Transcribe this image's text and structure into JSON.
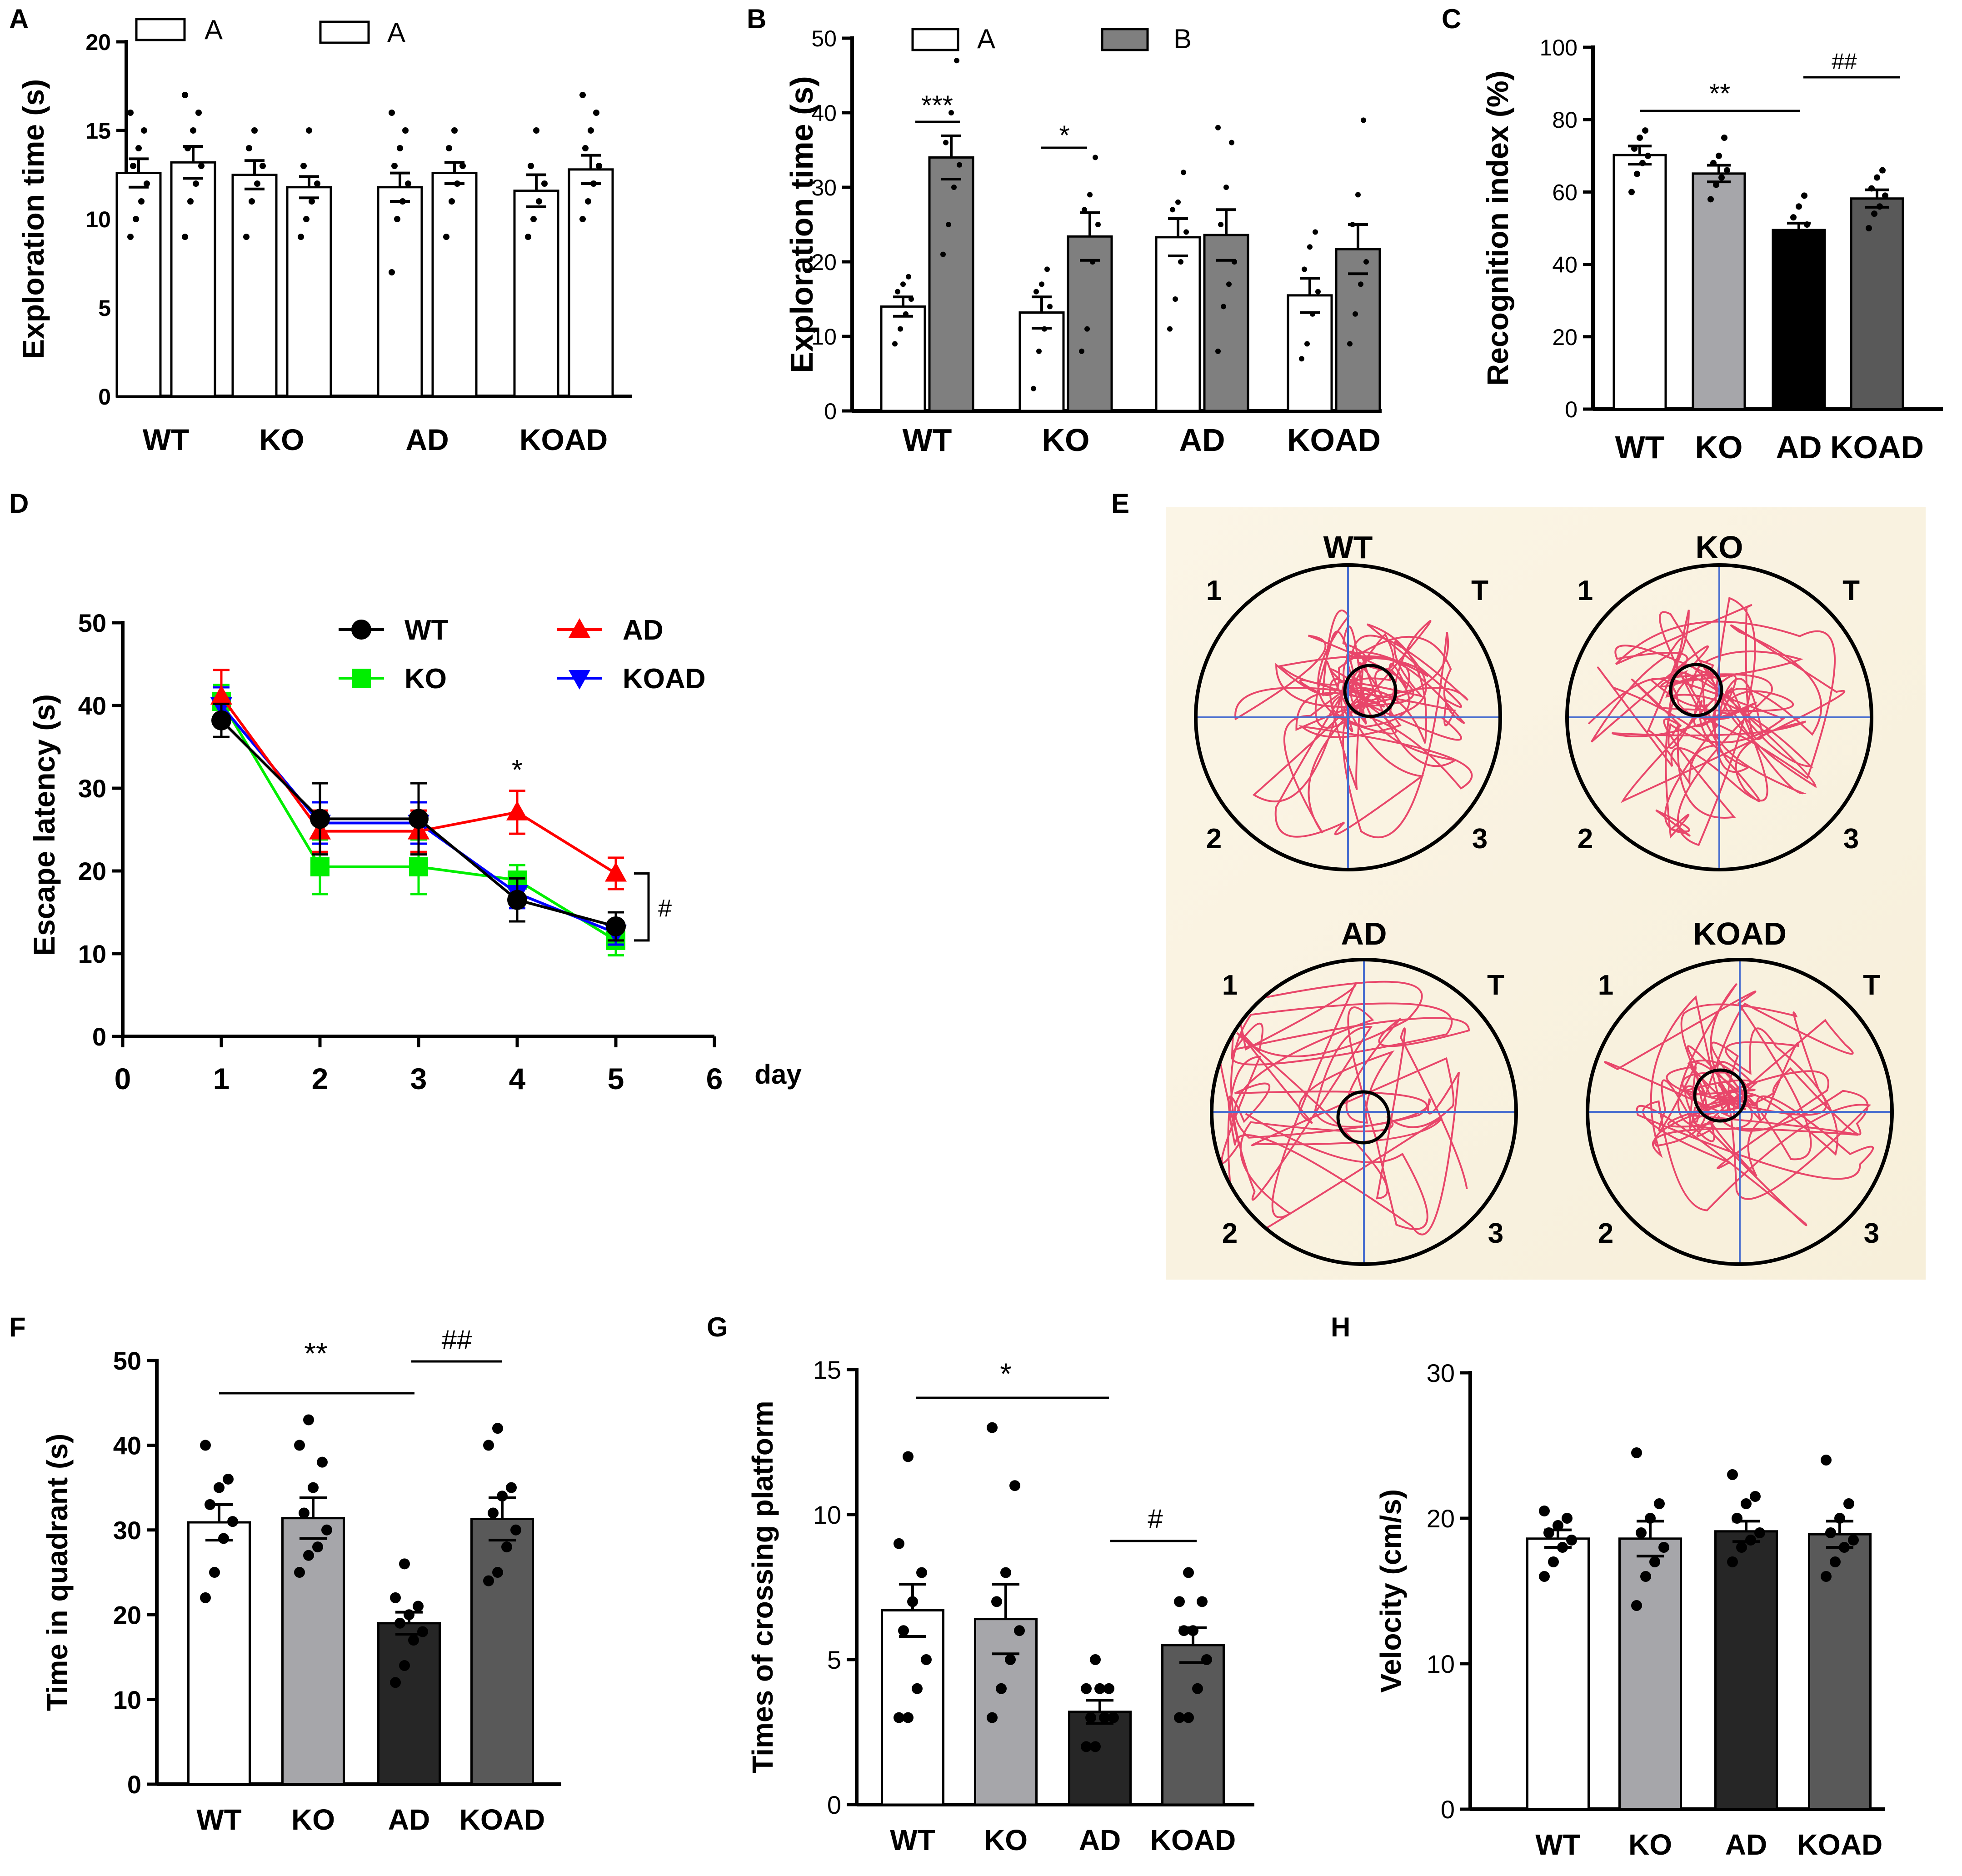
{
  "chart_data": [
    {
      "panel": "A",
      "type": "bar",
      "categories": [
        "WT",
        "KO",
        "AD",
        "KOAD"
      ],
      "series": [
        {
          "name": "A",
          "values": [
            12.6,
            12.5,
            11.8,
            11.6
          ],
          "errors": [
            0.8,
            0.8,
            0.8,
            0.9
          ],
          "points": [
            [
              9,
              10,
              11,
              12,
              13,
              14,
              15,
              16
            ],
            [
              9,
              11,
              12,
              13,
              14,
              15
            ],
            [
              7,
              10,
              11,
              12,
              13,
              14,
              15,
              16
            ],
            [
              9,
              10,
              11,
              12,
              13,
              15
            ]
          ]
        },
        {
          "name": "A",
          "values": [
            13.2,
            11.8,
            12.6,
            12.8
          ],
          "errors": [
            0.9,
            0.6,
            0.6,
            0.8
          ],
          "points": [
            [
              9,
              11,
              12,
              13,
              14,
              15,
              16,
              17
            ],
            [
              9,
              10,
              11,
              12,
              13,
              15
            ],
            [
              9,
              11,
              12,
              13,
              14,
              15
            ],
            [
              10,
              11,
              12,
              13,
              14,
              15,
              16,
              17
            ]
          ]
        }
      ],
      "ylabel": "Exploration time (s)",
      "ylim": [
        0,
        20
      ],
      "yticks": [
        "0",
        "5",
        "10",
        "15",
        "20"
      ],
      "legend": "top"
    },
    {
      "panel": "B",
      "type": "bar",
      "categories": [
        "WT",
        "KO",
        "AD",
        "KOAD"
      ],
      "series": [
        {
          "name": "A",
          "values": [
            14,
            13.2,
            23.3,
            15.5
          ],
          "errors": [
            1.3,
            2.1,
            2.5,
            2.3
          ],
          "points": [
            [
              9,
              11,
              13,
              15,
              16,
              17,
              18
            ],
            [
              3,
              8,
              11,
              14,
              16,
              17,
              19
            ],
            [
              11,
              15,
              20,
              24,
              27,
              28,
              32
            ],
            [
              7,
              9,
              13,
              16,
              19,
              22,
              24
            ]
          ]
        },
        {
          "name": "B",
          "values": [
            34,
            23.4,
            23.6,
            21.7
          ],
          "errors": [
            2.9,
            3.2,
            3.4,
            3.3
          ],
          "points": [
            [
              21,
              25,
              30,
              33,
              36,
              40,
              47
            ],
            [
              8,
              11,
              20,
              25,
              27,
              29,
              34
            ],
            [
              8,
              14,
              17,
              20,
              25,
              30,
              36,
              38
            ],
            [
              9,
              13,
              17,
              20,
              25,
              29,
              39
            ]
          ]
        }
      ],
      "ylabel": "Exploration time (s)",
      "ylim": [
        0,
        50
      ],
      "yticks": [
        "0",
        "10",
        "20",
        "30",
        "40",
        "50"
      ],
      "significance": [
        "***",
        "*"
      ],
      "legend": "top"
    },
    {
      "panel": "C",
      "type": "bar",
      "categories": [
        "WT",
        "KO",
        "AD",
        "KOAD"
      ],
      "values": [
        70.2,
        65.1,
        49.5,
        58.2
      ],
      "errors": [
        2.5,
        2.3,
        1.9,
        2.4
      ],
      "points": [
        [
          60,
          65,
          68,
          70,
          72,
          75,
          77
        ],
        [
          58,
          62,
          64,
          66,
          68,
          70,
          75
        ],
        [
          44,
          47,
          49,
          51,
          53,
          56,
          59
        ],
        [
          50,
          54,
          56,
          59,
          61,
          64,
          66
        ]
      ],
      "ylabel": "Recognition index (%)",
      "ylim": [
        0,
        100
      ],
      "yticks": [
        "0",
        "20",
        "40",
        "60",
        "80",
        "100"
      ],
      "significance": [
        "**",
        "##"
      ]
    },
    {
      "panel": "D",
      "type": "line",
      "x": [
        1,
        2,
        3,
        4,
        5
      ],
      "series": [
        {
          "name": "WT",
          "values": [
            38.2,
            26.3,
            26.3,
            16.5,
            13.3
          ],
          "errors": [
            2.0,
            4.3,
            4.3,
            2.6,
            1.7
          ],
          "color": "#000000",
          "marker": "circle"
        },
        {
          "name": "AD",
          "values": [
            41.1,
            24.8,
            24.8,
            27.1,
            19.7
          ],
          "errors": [
            3.2,
            2.5,
            2.5,
            2.6,
            1.9
          ],
          "color": "#ff0000",
          "marker": "triangle-up"
        },
        {
          "name": "KO",
          "values": [
            40.5,
            20.5,
            20.5,
            18.9,
            11.6
          ],
          "errors": [
            2.0,
            3.3,
            3.3,
            1.8,
            1.8
          ],
          "color": "#00ee00",
          "marker": "square"
        },
        {
          "name": "KOAD",
          "values": [
            40.0,
            25.8,
            25.8,
            17.3,
            12.5
          ],
          "errors": [
            2.2,
            2.5,
            2.5,
            1.8,
            1.4
          ],
          "color": "#0000ff",
          "marker": "triangle-down"
        }
      ],
      "xlabel": "day",
      "ylabel": "Escape latency (s)",
      "xlim": [
        0,
        6
      ],
      "ylim": [
        0,
        50
      ],
      "xticks": [
        "0",
        "1",
        "2",
        "3",
        "4",
        "5",
        "6"
      ],
      "yticks": [
        "0",
        "10",
        "20",
        "30",
        "40",
        "50"
      ],
      "significance": [
        "*",
        "#"
      ]
    },
    {
      "panel": "E",
      "type": "image",
      "groups": [
        "WT",
        "KO",
        "AD",
        "KOAD"
      ],
      "quadrant_labels": [
        "1",
        "T",
        "2",
        "3"
      ]
    },
    {
      "panel": "F",
      "type": "bar",
      "categories": [
        "WT",
        "KO",
        "AD",
        "KOAD"
      ],
      "values": [
        30.9,
        31.4,
        19.0,
        31.3
      ],
      "errors": [
        2.1,
        2.4,
        1.3,
        2.5
      ],
      "points": [
        [
          22,
          25,
          29,
          31,
          33,
          35,
          36,
          40
        ],
        [
          25,
          27,
          28,
          30,
          32,
          35,
          38,
          40,
          43
        ],
        [
          12,
          14,
          17,
          18,
          19,
          20,
          21,
          22,
          26
        ],
        [
          24,
          25,
          28,
          30,
          32,
          34,
          35,
          40,
          42
        ]
      ],
      "ylabel": "Time in quadrant  (s)",
      "ylim": [
        0,
        50
      ],
      "yticks": [
        "0",
        "10",
        "20",
        "30",
        "40",
        "50"
      ],
      "significance": [
        "**",
        "##"
      ]
    },
    {
      "panel": "G",
      "type": "bar",
      "categories": [
        "WT",
        "KO",
        "AD",
        "KOAD"
      ],
      "values": [
        6.7,
        6.4,
        3.2,
        5.5
      ],
      "errors": [
        0.9,
        1.2,
        0.4,
        0.6
      ],
      "points": [
        [
          3,
          3,
          4,
          5,
          6,
          7,
          8,
          9,
          12
        ],
        [
          3,
          4,
          5,
          6,
          7,
          8,
          11,
          13
        ],
        [
          2,
          2,
          3,
          3,
          3,
          4,
          4,
          4,
          5
        ],
        [
          3,
          3,
          4,
          5,
          6,
          6,
          7,
          7,
          8
        ]
      ],
      "ylabel": "Times of crossing platform",
      "ylim": [
        0,
        15
      ],
      "yticks": [
        "0",
        "5",
        "10",
        "15"
      ],
      "significance": [
        "*",
        "#"
      ]
    },
    {
      "panel": "H",
      "type": "bar",
      "categories": [
        "WT",
        "KO",
        "AD",
        "KOAD"
      ],
      "values": [
        18.6,
        18.6,
        19.1,
        18.9
      ],
      "errors": [
        0.6,
        1.2,
        0.7,
        0.9
      ],
      "points": [
        [
          16,
          17,
          18,
          18.5,
          19,
          19.5,
          20,
          20.5
        ],
        [
          14,
          16,
          17,
          18,
          19,
          20,
          21,
          24.5
        ],
        [
          17,
          18,
          18.5,
          19,
          20,
          21,
          21.5,
          23
        ],
        [
          16,
          17,
          18,
          18.5,
          19,
          20,
          21,
          24
        ]
      ],
      "ylabel": "Velocity (cm/s)",
      "ylim": [
        0,
        30
      ],
      "yticks": [
        "0",
        "10",
        "20",
        "30"
      ]
    }
  ]
}
